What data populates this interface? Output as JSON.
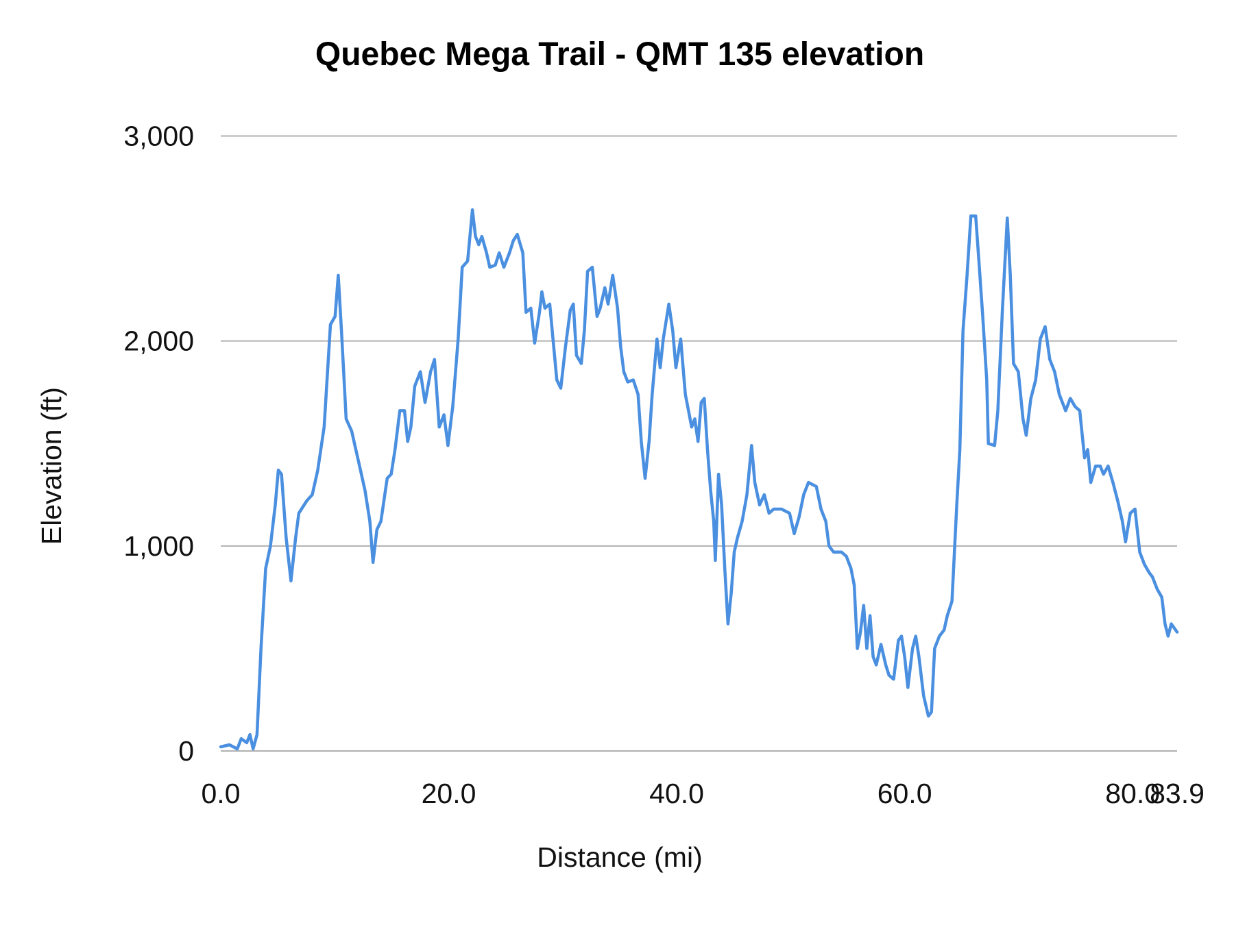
{
  "chart_data": {
    "type": "line",
    "title": "Quebec Mega Trail - QMT 135 elevation",
    "xlabel": "Distance (mi)",
    "ylabel": "Elevation (ft)",
    "xlim": [
      0,
      83.9
    ],
    "ylim": [
      0,
      3000
    ],
    "grid": true,
    "legend": "none",
    "x_ticks": [
      "0.0",
      "20.0",
      "40.0",
      "60.0",
      "80.0",
      "83.9"
    ],
    "x_tick_values": [
      0,
      20,
      40,
      60,
      80,
      83.9
    ],
    "y_ticks": [
      "0",
      "1,000",
      "2,000",
      "3,000"
    ],
    "y_tick_values": [
      0,
      1000,
      2000,
      3000
    ],
    "series": [
      {
        "name": "Elevation",
        "color": "#4a8fe0",
        "x": [
          0.0,
          0.76,
          1.45,
          1.8,
          2.28,
          2.56,
          2.84,
          3.18,
          3.53,
          3.94,
          4.36,
          4.78,
          5.05,
          5.33,
          5.74,
          6.16,
          6.57,
          6.85,
          7.54,
          8.03,
          8.51,
          9.07,
          9.62,
          10.03,
          10.31,
          10.59,
          11.0,
          11.49,
          12.18,
          12.66,
          13.08,
          13.36,
          13.7,
          14.05,
          14.6,
          14.95,
          15.29,
          15.71,
          16.12,
          16.4,
          16.68,
          17.02,
          17.51,
          17.92,
          18.41,
          18.75,
          19.17,
          19.58,
          19.93,
          20.35,
          20.83,
          21.18,
          21.66,
          22.08,
          22.35,
          22.63,
          22.91,
          23.32,
          23.6,
          24.08,
          24.43,
          24.84,
          25.33,
          25.67,
          26.02,
          26.5,
          26.78,
          27.2,
          27.54,
          27.96,
          28.17,
          28.44,
          28.86,
          29.48,
          29.83,
          30.24,
          30.66,
          30.93,
          31.21,
          31.63,
          31.9,
          32.18,
          32.6,
          33.01,
          33.29,
          33.7,
          33.98,
          34.39,
          34.81,
          35.09,
          35.36,
          35.71,
          36.19,
          36.61,
          36.89,
          37.23,
          37.58,
          37.85,
          38.27,
          38.55,
          38.82,
          39.31,
          39.65,
          39.93,
          40.35,
          40.76,
          41.31,
          41.59,
          41.87,
          42.15,
          42.42,
          42.7,
          42.98,
          43.25,
          43.39,
          43.67,
          43.94,
          44.22,
          44.5,
          44.78,
          45.05,
          45.33,
          45.74,
          46.16,
          46.57,
          46.85,
          47.27,
          47.68,
          48.1,
          48.51,
          49.2,
          49.9,
          50.31,
          50.73,
          51.14,
          51.56,
          52.25,
          52.66,
          53.08,
          53.36,
          53.77,
          54.46,
          54.88,
          55.29,
          55.57,
          55.85,
          56.12,
          56.4,
          56.68,
          56.96,
          57.23,
          57.51,
          57.92,
          58.34,
          58.62,
          59.03,
          59.45,
          59.72,
          60.0,
          60.28,
          60.69,
          60.97,
          61.25,
          61.66,
          62.08,
          62.35,
          62.63,
          63.04,
          63.46,
          63.74,
          64.15,
          64.57,
          64.84,
          65.12,
          65.47,
          65.81,
          66.23,
          66.51,
          66.85,
          67.2,
          67.34,
          67.89,
          68.17,
          68.58,
          69.0,
          69.27,
          69.55,
          69.97,
          70.38,
          70.66,
          71.07,
          71.49,
          71.9,
          72.32,
          72.73,
          73.15,
          73.56,
          74.12,
          74.53,
          74.95,
          75.36,
          75.78,
          76.06,
          76.33,
          76.75,
          77.16,
          77.44,
          77.85,
          78.27,
          78.69,
          79.1,
          79.38,
          79.79,
          80.21,
          80.62,
          81.04,
          81.45,
          81.73,
          82.15,
          82.56,
          82.84,
          83.11,
          83.39,
          83.9
        ],
        "y": [
          20,
          30,
          10,
          60,
          40,
          80,
          10,
          80,
          500,
          890,
          1000,
          1200,
          1370,
          1350,
          1040,
          830,
          1040,
          1160,
          1220,
          1250,
          1370,
          1580,
          2080,
          2120,
          2320,
          2050,
          1620,
          1560,
          1390,
          1270,
          1120,
          920,
          1080,
          1120,
          1330,
          1350,
          1470,
          1660,
          1660,
          1510,
          1580,
          1780,
          1850,
          1700,
          1850,
          1910,
          1580,
          1640,
          1490,
          1680,
          2010,
          2360,
          2390,
          2640,
          2510,
          2470,
          2510,
          2430,
          2360,
          2370,
          2430,
          2360,
          2430,
          2490,
          2520,
          2430,
          2140,
          2160,
          1990,
          2140,
          2240,
          2160,
          2180,
          1810,
          1770,
          1970,
          2150,
          2180,
          1930,
          1890,
          2050,
          2340,
          2360,
          2120,
          2160,
          2260,
          2180,
          2320,
          2160,
          1970,
          1850,
          1800,
          1810,
          1740,
          1510,
          1330,
          1510,
          1740,
          2010,
          1870,
          2010,
          2180,
          2050,
          1870,
          2010,
          1740,
          1580,
          1620,
          1510,
          1700,
          1720,
          1470,
          1270,
          1120,
          930,
          1350,
          1200,
          890,
          620,
          770,
          970,
          1040,
          1120,
          1250,
          1490,
          1310,
          1200,
          1250,
          1160,
          1180,
          1180,
          1160,
          1060,
          1140,
          1250,
          1310,
          1290,
          1180,
          1120,
          1000,
          970,
          970,
          950,
          890,
          810,
          500,
          580,
          710,
          500,
          660,
          460,
          420,
          520,
          420,
          370,
          350,
          540,
          560,
          460,
          310,
          500,
          560,
          460,
          270,
          170,
          190,
          500,
          560,
          590,
          660,
          730,
          1200,
          1470,
          2050,
          2320,
          2610,
          2610,
          2390,
          2120,
          1810,
          1500,
          1490,
          1660,
          2160,
          2600,
          2320,
          1890,
          1850,
          1620,
          1540,
          1720,
          1810,
          2010,
          2070,
          1910,
          1850,
          1740,
          1660,
          1720,
          1680,
          1660,
          1430,
          1470,
          1310,
          1390,
          1390,
          1350,
          1390,
          1310,
          1220,
          1120,
          1020,
          1160,
          1180,
          970,
          910,
          870,
          850,
          790,
          750,
          620,
          560,
          620,
          580
        ]
      }
    ]
  }
}
